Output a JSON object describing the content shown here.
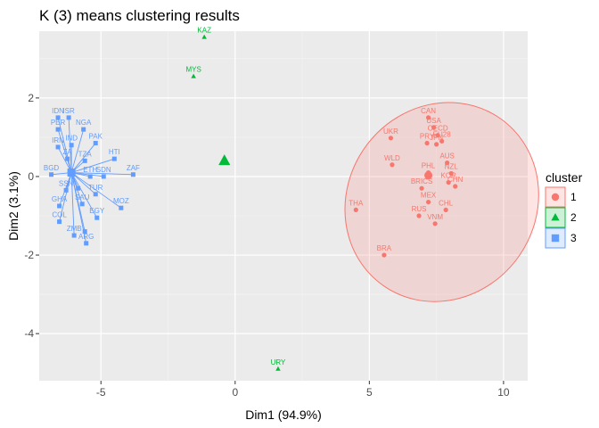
{
  "chart_data": {
    "type": "scatter",
    "title": "K (3) means clustering results",
    "xlabel": "Dim1 (94.9%)",
    "ylabel": "Dim2 (3.1%)",
    "xlim": [
      -7.3,
      10.9
    ],
    "ylim": [
      -5.2,
      3.7
    ],
    "x_ticks": [
      -5,
      0,
      5,
      10
    ],
    "y_ticks": [
      -4,
      -2,
      0,
      2
    ],
    "grid": true,
    "legend_title": "cluster",
    "legend_position": "right",
    "clusters": [
      {
        "name": "1",
        "color": "#f8766d",
        "shape": "circle",
        "center": [
          7.2,
          0.03
        ],
        "points": [
          {
            "label": "CAN",
            "x": 7.2,
            "y": 1.5
          },
          {
            "label": "OECD",
            "x": 7.55,
            "y": 1.05
          },
          {
            "label": "USA",
            "x": 7.4,
            "y": 1.25
          },
          {
            "label": "UKR",
            "x": 5.8,
            "y": 0.98
          },
          {
            "label": "PRY",
            "x": 7.15,
            "y": 0.85
          },
          {
            "label": "EU28",
            "x": 7.7,
            "y": 0.9
          },
          {
            "label": "JPN",
            "x": 7.5,
            "y": 0.82
          },
          {
            "label": "AUS",
            "x": 7.9,
            "y": 0.35
          },
          {
            "label": "WLD",
            "x": 5.85,
            "y": 0.3
          },
          {
            "label": "PHL",
            "x": 7.2,
            "y": 0.1
          },
          {
            "label": "NZL",
            "x": 8.05,
            "y": 0.08
          },
          {
            "label": "BRICS",
            "x": 6.95,
            "y": -0.3
          },
          {
            "label": "KOR",
            "x": 7.95,
            "y": -0.15
          },
          {
            "label": "CHN",
            "x": 8.2,
            "y": -0.25
          },
          {
            "label": "MEX",
            "x": 7.2,
            "y": -0.65
          },
          {
            "label": "CHL",
            "x": 7.85,
            "y": -0.85
          },
          {
            "label": "THA",
            "x": 4.5,
            "y": -0.85
          },
          {
            "label": "RUS",
            "x": 6.85,
            "y": -1.0
          },
          {
            "label": "VNM",
            "x": 7.45,
            "y": -1.2
          },
          {
            "label": "BRA",
            "x": 5.55,
            "y": -2.0
          }
        ]
      },
      {
        "name": "2",
        "color": "#00ba38",
        "shape": "triangle",
        "center": [
          -0.4,
          0.4
        ],
        "points": [
          {
            "label": "KAZ",
            "x": -1.15,
            "y": 3.55
          },
          {
            "label": "MYS",
            "x": -1.55,
            "y": 2.55
          },
          {
            "label": "URY",
            "x": 1.6,
            "y": -4.9
          }
        ]
      },
      {
        "name": "3",
        "color": "#619cff",
        "shape": "square",
        "center": [
          -6.1,
          0.1
        ],
        "points": [
          {
            "label": "IDN",
            "x": -6.6,
            "y": 1.5
          },
          {
            "label": "ISR",
            "x": -6.2,
            "y": 1.5
          },
          {
            "label": "PER",
            "x": -6.6,
            "y": 1.2
          },
          {
            "label": "NGA",
            "x": -5.65,
            "y": 1.2
          },
          {
            "label": "IND",
            "x": -6.1,
            "y": 0.8
          },
          {
            "label": "PAK",
            "x": -5.2,
            "y": 0.85
          },
          {
            "label": "IRN",
            "x": -6.6,
            "y": 0.75
          },
          {
            "label": "ZA",
            "x": -6.25,
            "y": 0.45
          },
          {
            "label": "TZA",
            "x": -5.6,
            "y": 0.4
          },
          {
            "label": "HTI",
            "x": -4.5,
            "y": 0.45
          },
          {
            "label": "BGD",
            "x": -6.85,
            "y": 0.05
          },
          {
            "label": "ETH",
            "x": -5.4,
            "y": 0.0
          },
          {
            "label": "SDN",
            "x": -4.9,
            "y": 0.0
          },
          {
            "label": "ZAF",
            "x": -3.8,
            "y": 0.05
          },
          {
            "label": "SSN",
            "x": -6.3,
            "y": -0.35
          },
          {
            "label": "TUR",
            "x": -5.2,
            "y": -0.45
          },
          {
            "label": "GHA",
            "x": -6.55,
            "y": -0.75
          },
          {
            "label": "SAU",
            "x": -5.7,
            "y": -0.7
          },
          {
            "label": "EGY",
            "x": -5.15,
            "y": -1.05
          },
          {
            "label": "MOZ",
            "x": -4.25,
            "y": -0.8
          },
          {
            "label": "COL",
            "x": -6.55,
            "y": -1.15
          },
          {
            "label": "ZMB",
            "x": -6.0,
            "y": -1.5
          },
          {
            "label": "ARG",
            "x": -5.55,
            "y": -1.7
          },
          {
            "label": "",
            "x": -5.85,
            "y": -0.3
          },
          {
            "label": "",
            "x": -5.6,
            "y": -1.4
          }
        ]
      }
    ],
    "ellipse": {
      "cluster": "1",
      "center_x": 7.7,
      "center_y": -0.65,
      "rx_data": 3.8,
      "ry_data": 2.4,
      "rotation_deg": -55
    }
  }
}
